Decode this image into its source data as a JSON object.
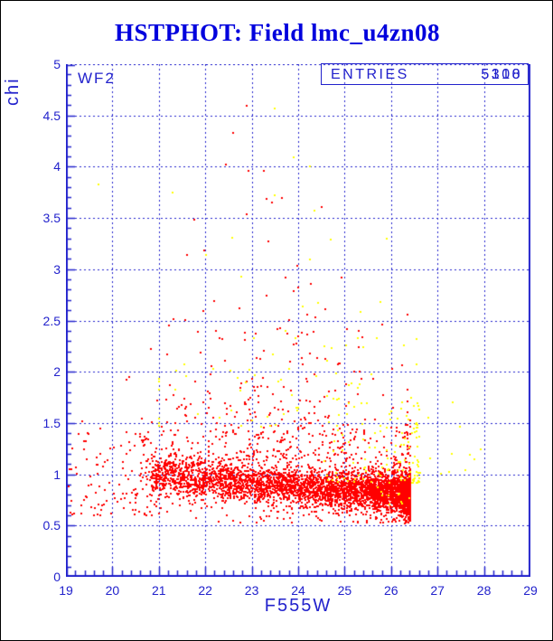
{
  "title": {
    "text": "HSTPHOT: Field lmc_u4zn08",
    "color": "#0000dd"
  },
  "chart_data": {
    "type": "scatter",
    "title": "HSTPHOT: Field lmc_u4zn08",
    "xlabel": "F555W",
    "ylabel": "chi",
    "xlim": [
      19,
      29
    ],
    "ylim": [
      0,
      5
    ],
    "axis_color": "#2222cc",
    "grid": "dashed lines at every x integer and every y 0.5",
    "legend_position": "none",
    "detector_label": "WF2",
    "stats_box": {
      "label": "ENTRIES",
      "values": [
        "5318",
        "5100"
      ]
    },
    "x_major_ticks": [
      19,
      20,
      21,
      22,
      23,
      24,
      25,
      26,
      27,
      28,
      29
    ],
    "x_tick_labels": [
      "19",
      "20",
      "21",
      "22",
      "23",
      "24",
      "25",
      "26",
      "27",
      "28",
      "29"
    ],
    "x_minor_step": 0.2,
    "y_major_ticks": [
      0,
      0.5,
      1,
      1.5,
      2,
      2.5,
      3,
      3.5,
      4,
      4.5,
      5
    ],
    "y_tick_labels": [
      "0",
      "0.5",
      "1",
      "1.5",
      "2",
      "2.5",
      "3",
      "3.5",
      "4",
      "4.5",
      "5"
    ],
    "y_minor_step": 0.1,
    "marker": "2px filled square",
    "seed": 987654321,
    "series": [
      {
        "name": "red-stars",
        "color": "#ff0000",
        "approx_count": 5100,
        "description": "dense band chi~1.0 at mag 21 sloping to chi~0.8, sharp faint cutoff at F555W~26.4, cone of high-chi points centered mag~23.7",
        "clusters": [
          {
            "type": "band",
            "n": 4000,
            "x_min": 20.8,
            "x_max": 26.42,
            "x_pow": 2.2,
            "y_mean_bright": 1.0,
            "y_mean_faint": 0.8,
            "y_sigma": 0.095
          },
          {
            "type": "band",
            "n": 640,
            "x_min": 20.6,
            "x_max": 26.42,
            "x_pow": 1.8,
            "y_mean_bright": 1.05,
            "y_mean_faint": 0.88,
            "y_sigma": 0.24
          },
          {
            "type": "box",
            "n": 110,
            "x_min": 19.05,
            "x_max": 21.0,
            "x_pow": 1.0,
            "y_min": 0.6,
            "y_max": 1.45,
            "y_pow": 1.6
          },
          {
            "type": "cone",
            "n": 300,
            "x_center": 23.7,
            "x_sigma_base": 1.7,
            "x_sigma_min": 0.5,
            "x_shrink": 0.35,
            "x_min": 20.3,
            "x_max": 26.35,
            "y_base": 1.15,
            "y_scale": 0.55,
            "y_max": 4.4
          }
        ],
        "outliers": [
          [
            22.89,
            4.59
          ],
          [
            22.6,
            4.33
          ],
          [
            22.93,
            3.96
          ],
          [
            23.44,
            3.65
          ],
          [
            22.9,
            3.54
          ],
          [
            21.6,
            3.14
          ],
          [
            19.35,
            1.52
          ]
        ]
      },
      {
        "name": "yellow-stars",
        "color": "#ffff00",
        "approx_count": 218,
        "description": "scattered flagged stars, mostly faint (25-26.6) just above the red band, plus high-chi scatter and a few beyond the mag 26.5 cutoff",
        "clusters": [
          {
            "type": "box",
            "n": 112,
            "x_min": 24.5,
            "x_max": 26.6,
            "x_pow": 2.0,
            "y_min": 0.92,
            "y_max": 1.75,
            "y_pow": 1.9
          },
          {
            "type": "cone",
            "n": 72,
            "x_center": 23.9,
            "x_sigma_base": 1.6,
            "x_sigma_min": 0.6,
            "x_shrink": 0.3,
            "x_min": 21.0,
            "x_max": 26.55,
            "y_base": 1.45,
            "y_scale": 0.7,
            "y_max": 4.15
          },
          {
            "type": "box",
            "n": 9,
            "x_min": 26.5,
            "x_max": 28.05,
            "x_pow": 1.0,
            "y_min": 0.95,
            "y_max": 1.75,
            "y_pow": 1.2
          },
          {
            "type": "box",
            "n": 12,
            "x_min": 25.7,
            "x_max": 26.45,
            "x_pow": 1.3,
            "y_min": 0.7,
            "y_max": 0.95,
            "y_pow": 1.0
          }
        ],
        "outliers": [
          [
            23.49,
            4.57
          ],
          [
            23.9,
            4.09
          ],
          [
            24.25,
            4.0
          ],
          [
            19.7,
            3.83
          ],
          [
            21.3,
            3.75
          ],
          [
            23.5,
            3.72
          ],
          [
            24.35,
            3.57
          ],
          [
            25.9,
            3.3
          ],
          [
            27.48,
            1.46
          ],
          [
            27.3,
            1.2
          ],
          [
            27.7,
            1.19
          ]
        ]
      }
    ]
  }
}
